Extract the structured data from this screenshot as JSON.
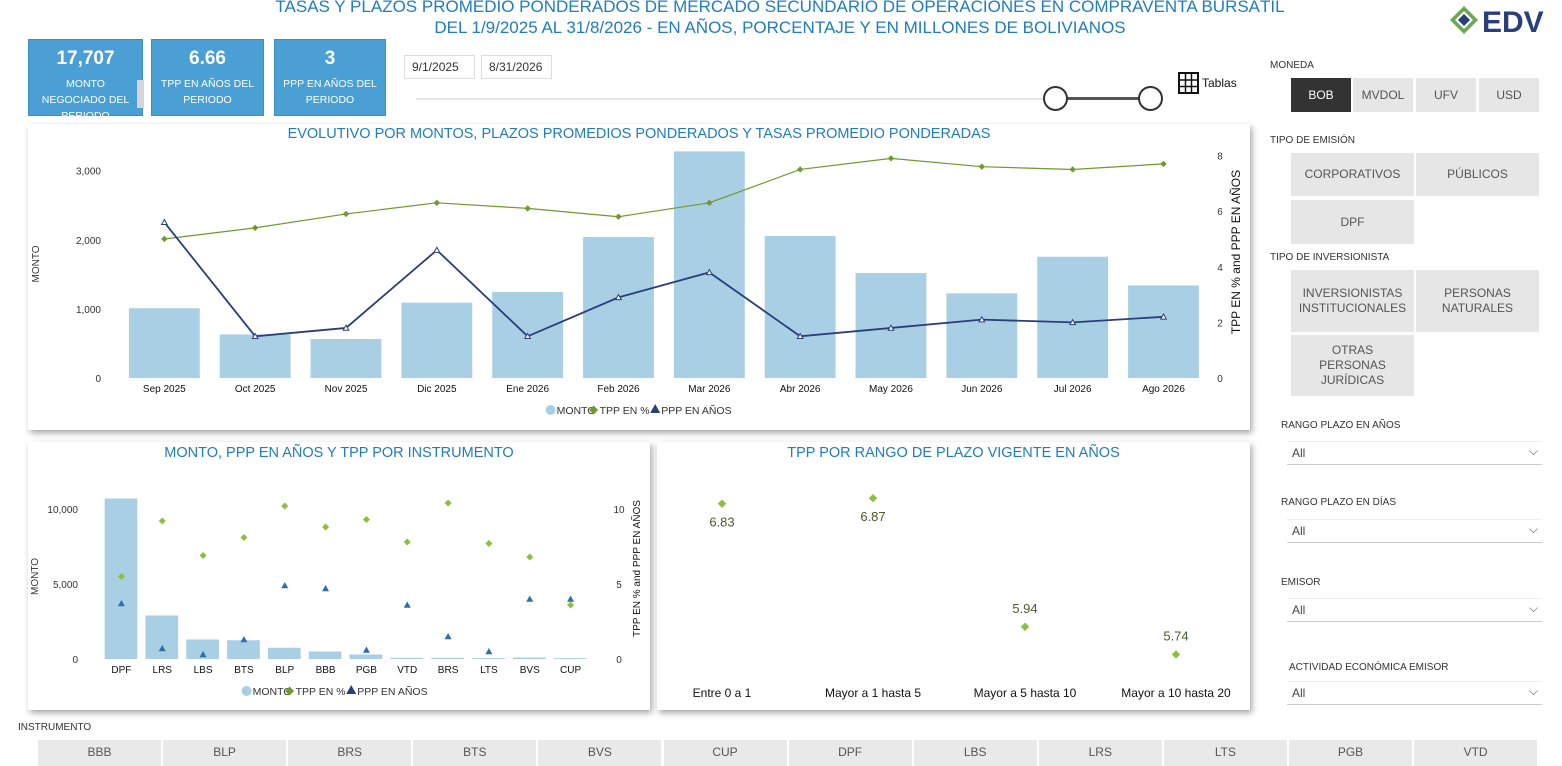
{
  "header": {
    "title_line1": "TASAS Y PLAZOS PROMEDIO PONDERADOS DE MERCADO SECUNDARIO DE OPERACIONES EN COMPRAVENTA BURSÁTIL",
    "title_line2": "DEL 1/9/2025 AL 31/8/2026 - EN AÑOS, PORCENTAJE Y EN MILLONES DE BOLIVIANOS",
    "logo_text": "EDV"
  },
  "kpis": [
    {
      "value": "17,707",
      "label": "MONTO NEGOCIADO DEL PERIODO"
    },
    {
      "value": "6.66",
      "label": "TPP EN AÑOS DEL PERIODO"
    },
    {
      "value": "3",
      "label": "PPP EN AÑOS DEL PERIODO"
    }
  ],
  "date_range": {
    "start": "9/1/2025",
    "end": "8/31/2026",
    "slider_start_fraction": 0.87,
    "slider_end_fraction": 1.0
  },
  "tablas_label": "Tablas",
  "filters": {
    "moneda": {
      "label": "MONEDA",
      "options": [
        "BOB",
        "MVDOL",
        "UFV",
        "USD"
      ],
      "selected": "BOB"
    },
    "tipo_emision": {
      "label": "TIPO DE EMISIÓN",
      "options": [
        "CORPORATIVOS",
        "PÚBLICOS",
        "DPF"
      ]
    },
    "tipo_inversionista": {
      "label": "TIPO DE INVERSIONISTA",
      "options": [
        "INVERSIONISTAS INSTITUCIONALES",
        "PERSONAS NATURALES",
        "OTRAS PERSONAS JURÍDICAS"
      ]
    },
    "rango_plazo_anos": {
      "label": "RANGO PLAZO EN AÑOS",
      "value": "All"
    },
    "rango_plazo_dias": {
      "label": "RANGO PLAZO EN DÍAS",
      "value": "All"
    },
    "emisor": {
      "label": "EMISOR",
      "value": "All"
    },
    "actividad": {
      "label": "ACTIVIDAD ECONÓMICA EMISOR",
      "value": "All"
    }
  },
  "instrumento": {
    "label": "INSTRUMENTO",
    "options": [
      "BBB",
      "BLP",
      "BRS",
      "BTS",
      "BVS",
      "CUP",
      "DPF",
      "LBS",
      "LRS",
      "LTS",
      "PGB",
      "VTD"
    ]
  },
  "colors": {
    "accent": "#1f7cc0",
    "bar": "#a9cfe5",
    "tpp": "#6f9a2c",
    "tpp_marker": "#8cbf3f",
    "ppp": "#2a3f7a",
    "kpi": "#4a9fd4"
  },
  "chart_data": [
    {
      "type": "bar",
      "title": "EVOLUTIVO POR MONTOS, PLAZOS PROMEDIOS PONDERADOS Y TASAS PROMEDIO PONDERADAS",
      "categories": [
        "Sep 2025",
        "Oct 2025",
        "Nov 2025",
        "Dic 2025",
        "Ene 2026",
        "Feb 2026",
        "Mar 2026",
        "Abr 2026",
        "May 2026",
        "Jun 2026",
        "Jul 2026",
        "Ago 2026"
      ],
      "series": [
        {
          "name": "MONTO",
          "type": "bar",
          "axis": "left",
          "values": [
            1010,
            630,
            565,
            1090,
            1245,
            2040,
            3280,
            2055,
            1520,
            1225,
            1755,
            1340
          ]
        },
        {
          "name": "TPP EN %",
          "type": "line",
          "axis": "right",
          "values": [
            5.0,
            5.4,
            5.9,
            6.3,
            6.1,
            5.8,
            6.3,
            7.5,
            7.9,
            7.6,
            7.5,
            7.7
          ]
        },
        {
          "name": "PPP EN AÑOS",
          "type": "line",
          "axis": "right",
          "values": [
            5.6,
            1.5,
            1.8,
            4.6,
            1.5,
            2.9,
            3.8,
            1.5,
            1.8,
            2.1,
            2.0,
            2.2
          ]
        }
      ],
      "ylabel": "MONTO",
      "ylabel_right": "TPP EN % and PPP EN AÑOS",
      "yticks": [
        "0",
        "1,000",
        "2,000",
        "3,000"
      ],
      "yticks_right": [
        "0",
        "2",
        "4",
        "6",
        "8"
      ],
      "ylim": [
        0,
        3300
      ],
      "ylim_right": [
        0,
        8.2
      ],
      "legend": "bottom"
    },
    {
      "type": "bar",
      "title": "MONTO, PPP EN AÑOS Y TPP POR INSTRUMENTO",
      "categories": [
        "DPF",
        "LRS",
        "LBS",
        "BTS",
        "BLP",
        "BBB",
        "PGB",
        "VTD",
        "BRS",
        "LTS",
        "BVS",
        "CUP"
      ],
      "series": [
        {
          "name": "MONTO",
          "type": "bar",
          "axis": "left",
          "values": [
            10700,
            2900,
            1300,
            1250,
            750,
            500,
            300,
            80,
            80,
            60,
            100,
            60
          ]
        },
        {
          "name": "TPP EN %",
          "type": "scatter",
          "axis": "right",
          "values": [
            5.5,
            9.2,
            6.9,
            8.1,
            10.2,
            8.8,
            9.3,
            7.8,
            10.4,
            7.7,
            6.8,
            3.6
          ]
        },
        {
          "name": "PPP EN AÑOS",
          "type": "scatter",
          "axis": "right",
          "values": [
            3.7,
            0.7,
            0.3,
            1.3,
            4.9,
            4.7,
            0.6,
            3.6,
            1.5,
            0.5,
            4.0,
            4.0
          ]
        }
      ],
      "ylabel": "MONTO",
      "ylabel_right": "TPP EN % and PPP EN AÑOS",
      "yticks": [
        "0",
        "5,000",
        "10,000"
      ],
      "yticks_right": [
        "0",
        "5",
        "10"
      ],
      "ylim": [
        0,
        11000
      ],
      "ylim_right": [
        0,
        11
      ],
      "legend": "bottom"
    },
    {
      "type": "scatter",
      "title": "TPP POR RANGO DE PLAZO VIGENTE EN AÑOS",
      "categories": [
        "Entre 0 a 1",
        "Mayor a 1 hasta 5",
        "Mayor a 5 hasta 10",
        "Mayor a 10 hasta 20"
      ],
      "values": [
        6.83,
        6.87,
        5.94,
        5.74
      ],
      "labels": [
        "6.83",
        "6.87",
        "5.94",
        "5.74"
      ],
      "ylim": [
        5.7,
        6.9
      ]
    }
  ]
}
